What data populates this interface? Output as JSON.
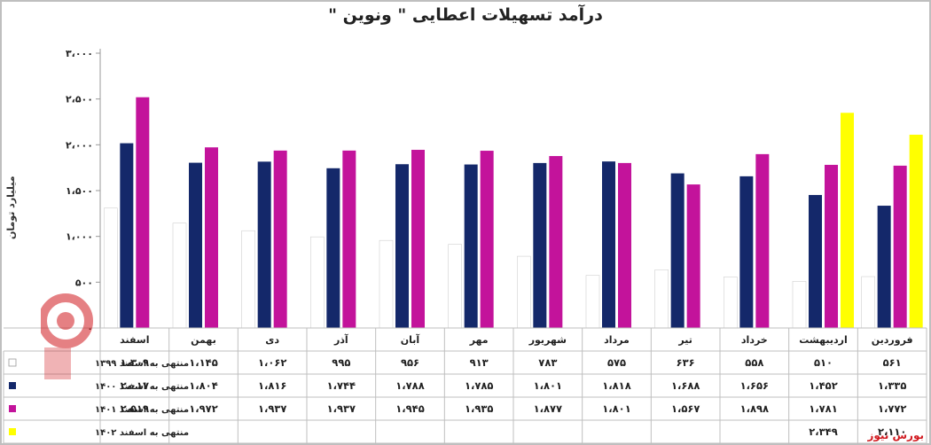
{
  "title": "درآمد تسهیلات اعطایی \" ونوین \"",
  "source": "بورس نیوز",
  "chart_data": {
    "type": "bar",
    "title": "درآمد تسهیلات اعطایی \" ونوین \"",
    "ylabel": "میلیارد تومان",
    "xlabel": "",
    "ylim": [
      0,
      3000
    ],
    "yticks": [
      "۰",
      "۵۰۰",
      "۱،۰۰۰",
      "۱،۵۰۰",
      "۲،۰۰۰",
      "۲،۵۰۰",
      "۳،۰۰۰"
    ],
    "ytick_values": [
      0,
      500,
      1000,
      1500,
      2000,
      2500,
      3000
    ],
    "grid": false,
    "legend": "table-below",
    "categories": [
      "فروردین",
      "اردیبهشت",
      "خرداد",
      "تیر",
      "مرداد",
      "شهریور",
      "مهر",
      "آبان",
      "آذر",
      "دی",
      "بهمن",
      "اسفند"
    ],
    "series": [
      {
        "name": "منتهی به اسفند ۱۳۹۹",
        "color": "#ffffff",
        "values": [
          561,
          510,
          558,
          636,
          575,
          783,
          913,
          956,
          995,
          1062,
          1145,
          1309
        ],
        "labels": [
          "۵۶۱",
          "۵۱۰",
          "۵۵۸",
          "۶۳۶",
          "۵۷۵",
          "۷۸۳",
          "۹۱۳",
          "۹۵۶",
          "۹۹۵",
          "۱،۰۶۲",
          "۱،۱۴۵",
          "۱،۳۰۹"
        ]
      },
      {
        "name": "منتهی به اسفند ۱۴۰۰",
        "color": "#14286a",
        "values": [
          1335,
          1452,
          1656,
          1688,
          1818,
          1801,
          1785,
          1788,
          1744,
          1816,
          1804,
          2017
        ],
        "labels": [
          "۱،۳۳۵",
          "۱،۴۵۲",
          "۱،۶۵۶",
          "۱،۶۸۸",
          "۱،۸۱۸",
          "۱،۸۰۱",
          "۱،۷۸۵",
          "۱،۷۸۸",
          "۱،۷۴۴",
          "۱،۸۱۶",
          "۱،۸۰۴",
          "۲،۰۱۷"
        ]
      },
      {
        "name": "منتهی به اسفند ۱۴۰۱",
        "color": "#c3139b",
        "values": [
          1772,
          1781,
          1898,
          1567,
          1801,
          1877,
          1935,
          1945,
          1937,
          1937,
          1972,
          2519
        ],
        "labels": [
          "۱،۷۷۲",
          "۱،۷۸۱",
          "۱،۸۹۸",
          "۱،۵۶۷",
          "۱،۸۰۱",
          "۱،۸۷۷",
          "۱،۹۳۵",
          "۱،۹۴۵",
          "۱،۹۳۷",
          "۱،۹۳۷",
          "۱،۹۷۲",
          "۲،۵۱۹"
        ]
      },
      {
        "name": "منتهی به اسفند ۱۴۰۲",
        "color": "#ffff00",
        "values": [
          2110,
          2349,
          null,
          null,
          null,
          null,
          null,
          null,
          null,
          null,
          null,
          null
        ],
        "labels": [
          "۲،۱۱۰",
          "۲،۳۴۹",
          "",
          "",
          "",
          "",
          "",
          "",
          "",
          "",
          "",
          ""
        ]
      }
    ]
  }
}
